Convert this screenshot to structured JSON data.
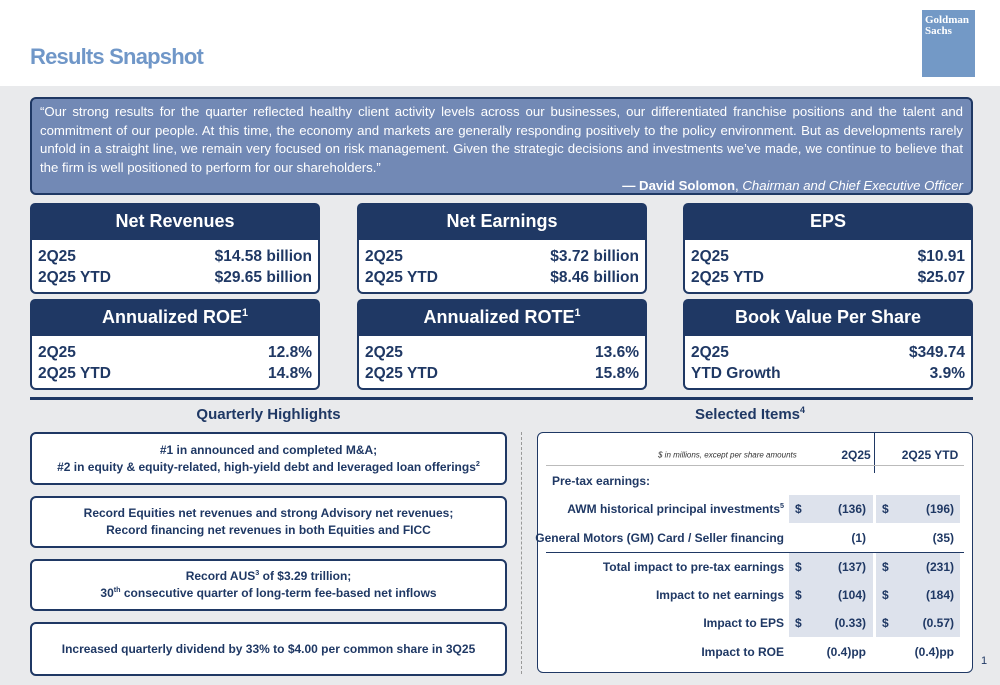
{
  "header": {
    "title": "Results Snapshot",
    "logo": [
      "Goldman",
      "Sachs"
    ]
  },
  "quote": {
    "text": "“Our strong results for the quarter reflected healthy client activity levels across our businesses, our differentiated franchise positions and the talent and commitment of our people. At this time, the economy and markets are generally responding positively to the policy environment. But as developments rarely unfold in a straight line, we remain very focused on risk management. Given the strategic decisions and investments we’ve made, we continue to believe that the firm is well positioned to perform for our shareholders.”",
    "author": "— David Solomon",
    "separator": ",",
    "role": "Chairman and Chief Executive Officer"
  },
  "metrics": [
    {
      "title": "Net Revenues",
      "rows": [
        [
          "2Q25",
          "$14.58 billion"
        ],
        [
          "2Q25 YTD",
          "$29.65 billion"
        ]
      ]
    },
    {
      "title": "Net Earnings",
      "rows": [
        [
          "2Q25",
          "$3.72 billion"
        ],
        [
          "2Q25 YTD",
          "$8.46 billion"
        ]
      ]
    },
    {
      "title": "EPS",
      "rows": [
        [
          "2Q25",
          "$10.91"
        ],
        [
          "2Q25 YTD",
          "$25.07"
        ]
      ]
    },
    {
      "title": "Annualized ROE",
      "sup": "1",
      "rows": [
        [
          "2Q25",
          "12.8%"
        ],
        [
          "2Q25 YTD",
          "14.8%"
        ]
      ]
    },
    {
      "title": "Annualized ROTE",
      "sup": "1",
      "rows": [
        [
          "2Q25",
          "13.6%"
        ],
        [
          "2Q25 YTD",
          "15.8%"
        ]
      ]
    },
    {
      "title": "Book Value Per Share",
      "rows": [
        [
          "2Q25",
          "$349.74"
        ],
        [
          "YTD Growth",
          "3.9%"
        ]
      ]
    }
  ],
  "highlights": {
    "title": "Quarterly Highlights",
    "items": [
      [
        [
          {
            "text": "#1 in announced and completed M&A;"
          }
        ],
        [
          {
            "text": "#2 in equity & equity-related, high-yield debt and leveraged loan offerings"
          },
          {
            "sup": "2"
          }
        ]
      ],
      [
        [
          {
            "text": "Record Equities net revenues and strong Advisory net revenues;"
          }
        ],
        [
          {
            "text": "Record financing net revenues in both Equities and FICC"
          }
        ]
      ],
      [
        [
          {
            "text": "Record AUS"
          },
          {
            "sup": "3"
          },
          {
            "text": " of $3.29 trillion;"
          }
        ],
        [
          {
            "text": "30"
          },
          {
            "sup": "th"
          },
          {
            "text": " consecutive quarter of long-term fee-based net inflows"
          }
        ]
      ],
      [
        [
          {
            "text": "Increased quarterly dividend by 33% to $4.00 per common share in 3Q25"
          }
        ]
      ]
    ]
  },
  "selected": {
    "title": "Selected Items",
    "sup": "4",
    "note": "$ in millions, except per share amounts",
    "columns": [
      "2Q25",
      "2Q25 YTD"
    ],
    "rows": [
      {
        "label": "Pre-tax earnings:"
      },
      {
        "label": "AWM historical principal investments",
        "sup": "5",
        "cells": [
          [
            "$",
            "(136)"
          ],
          [
            "$",
            "(196)"
          ]
        ]
      },
      {
        "label": "General Motors (GM) Card / Seller financing",
        "cells": [
          [
            null,
            "(1)"
          ],
          [
            null,
            "(35)"
          ]
        ]
      },
      {
        "label": "Total impact to pre-tax earnings",
        "cells": [
          [
            "$",
            "(137)"
          ],
          [
            "$",
            "(231)"
          ]
        ]
      },
      {
        "label": "Impact to net earnings",
        "cells": [
          [
            "$",
            "(104)"
          ],
          [
            "$",
            "(184)"
          ]
        ]
      },
      {
        "label": "Impact to EPS",
        "cells": [
          [
            "$",
            "(0.33)"
          ],
          [
            "$",
            "(0.57)"
          ]
        ]
      },
      {
        "label": "Impact to ROE",
        "cells": [
          [
            null,
            "(0.4)pp"
          ],
          [
            null,
            "(0.4)pp"
          ]
        ]
      }
    ]
  },
  "page_number": "1"
}
